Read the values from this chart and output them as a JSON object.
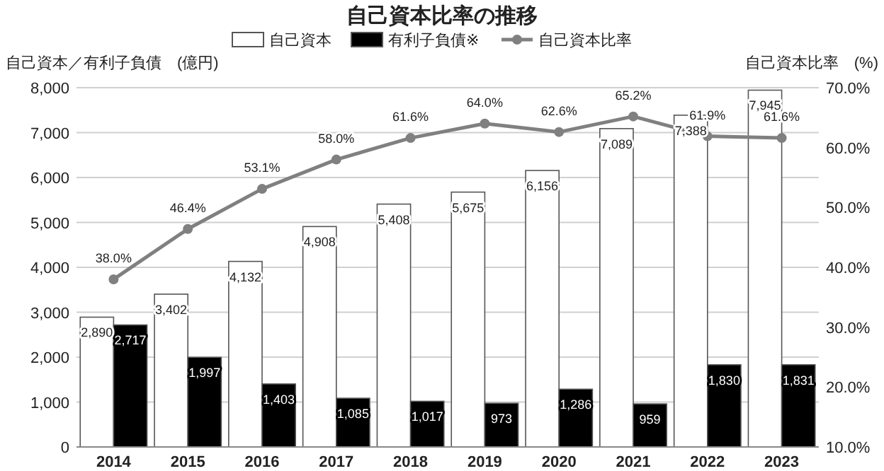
{
  "chart_data": {
    "type": "bar",
    "title": "自己資本比率の推移",
    "ylabel": "自己資本／有利子負債　(億円)",
    "y2label": "自己資本比率　(%)",
    "categories": [
      "2014",
      "2015",
      "2016",
      "2017",
      "2018",
      "2019",
      "2020",
      "2021",
      "2022",
      "2023"
    ],
    "series": [
      {
        "name": "自己資本",
        "color": "#ffffff",
        "values": [
          2890,
          3402,
          4132,
          4908,
          5408,
          5675,
          6156,
          7089,
          7388,
          7945
        ],
        "value_labels": [
          "2,890",
          "3,402",
          "4,132",
          "4,908",
          "5,408",
          "5,675",
          "6,156",
          "7,089",
          "7,388",
          "7,945"
        ]
      },
      {
        "name": "有利子負債※",
        "color": "#000000",
        "values": [
          2717,
          1997,
          1403,
          1085,
          1017,
          973,
          1286,
          959,
          1830,
          1831
        ],
        "value_labels": [
          "2,717",
          "1,997",
          "1,403",
          "1,085",
          "1,017",
          "973",
          "1,286",
          "959",
          "1,830",
          "1,831"
        ]
      },
      {
        "name": "自己資本比率",
        "type": "line",
        "axis": "y2",
        "color": "#808080",
        "marker": "circle",
        "values": [
          38.0,
          46.4,
          53.1,
          58.0,
          61.6,
          64.0,
          62.6,
          65.2,
          61.9,
          61.6
        ],
        "value_labels": [
          "38.0%",
          "46.4%",
          "53.1%",
          "58.0%",
          "61.6%",
          "64.0%",
          "62.6%",
          "65.2%",
          "61.9%",
          "61.6%"
        ]
      }
    ],
    "ylim": [
      0,
      8000
    ],
    "yticks": [
      0,
      {
        "value": 1000,
        "label": "1,000"
      },
      {
        "value": 2000,
        "label": "2,000"
      },
      {
        "value": 3000,
        "label": "3,000"
      },
      {
        "value": 4000,
        "label": "4,000"
      },
      {
        "value": 5000,
        "label": "5,000"
      },
      {
        "value": 6000,
        "label": "6,000"
      },
      {
        "value": 7000,
        "label": "7,000"
      },
      {
        "value": 8000,
        "label": "8,000"
      }
    ],
    "y2lim": [
      10,
      70
    ],
    "y2ticks": [
      {
        "value": 10,
        "label": "10.0%"
      },
      {
        "value": 20,
        "label": "20.0%"
      },
      {
        "value": 30,
        "label": "30.0%"
      },
      {
        "value": 40,
        "label": "40.0%"
      },
      {
        "value": 50,
        "label": "50.0%"
      },
      {
        "value": 60,
        "label": "60.0%"
      },
      {
        "value": 70,
        "label": "70.0%"
      }
    ],
    "grid": "y",
    "legend": "top"
  }
}
